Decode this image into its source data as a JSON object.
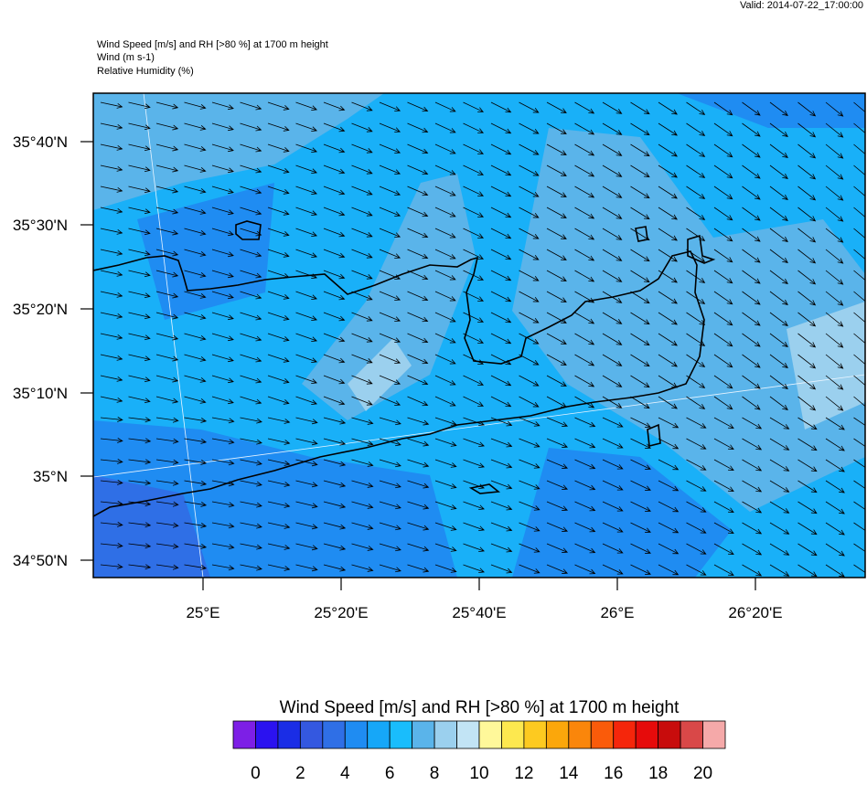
{
  "header": {
    "valid": "Valid: 2014-07-22_17:00:00",
    "title": "Wind Speed [m/s] and RH [>80 %] at 1700 m height",
    "line2": "Wind   (m s-1)",
    "line3": "Relative Humidity   (%)"
  },
  "map": {
    "lat_labels": [
      "35°40'N",
      "35°30'N",
      "35°20'N",
      "35°10'N",
      "35°N",
      "34°50'N"
    ],
    "lon_labels": [
      "25°E",
      "25°20'E",
      "25°40'E",
      "26°E",
      "26°20'E"
    ]
  },
  "colorbar": {
    "title": "Wind Speed [m/s] and RH [>80 %] at 1700 m height",
    "colors": [
      "#7d1fe6",
      "#2b12f0",
      "#1a2de6",
      "#3458e0",
      "#2f6fe6",
      "#1f8cf2",
      "#16a7f8",
      "#19bdfc",
      "#5ab4ea",
      "#9bd0ee",
      "#c2e4f5",
      "#fff89a",
      "#fde84f",
      "#fdca20",
      "#fba70b",
      "#fa860b",
      "#fa5b0a",
      "#f5260b",
      "#e60b0b",
      "#c80c0c",
      "#d94848",
      "#f5a9a9"
    ],
    "ticks": [
      0,
      2,
      4,
      6,
      8,
      10,
      12,
      14,
      16,
      18,
      20
    ]
  }
}
